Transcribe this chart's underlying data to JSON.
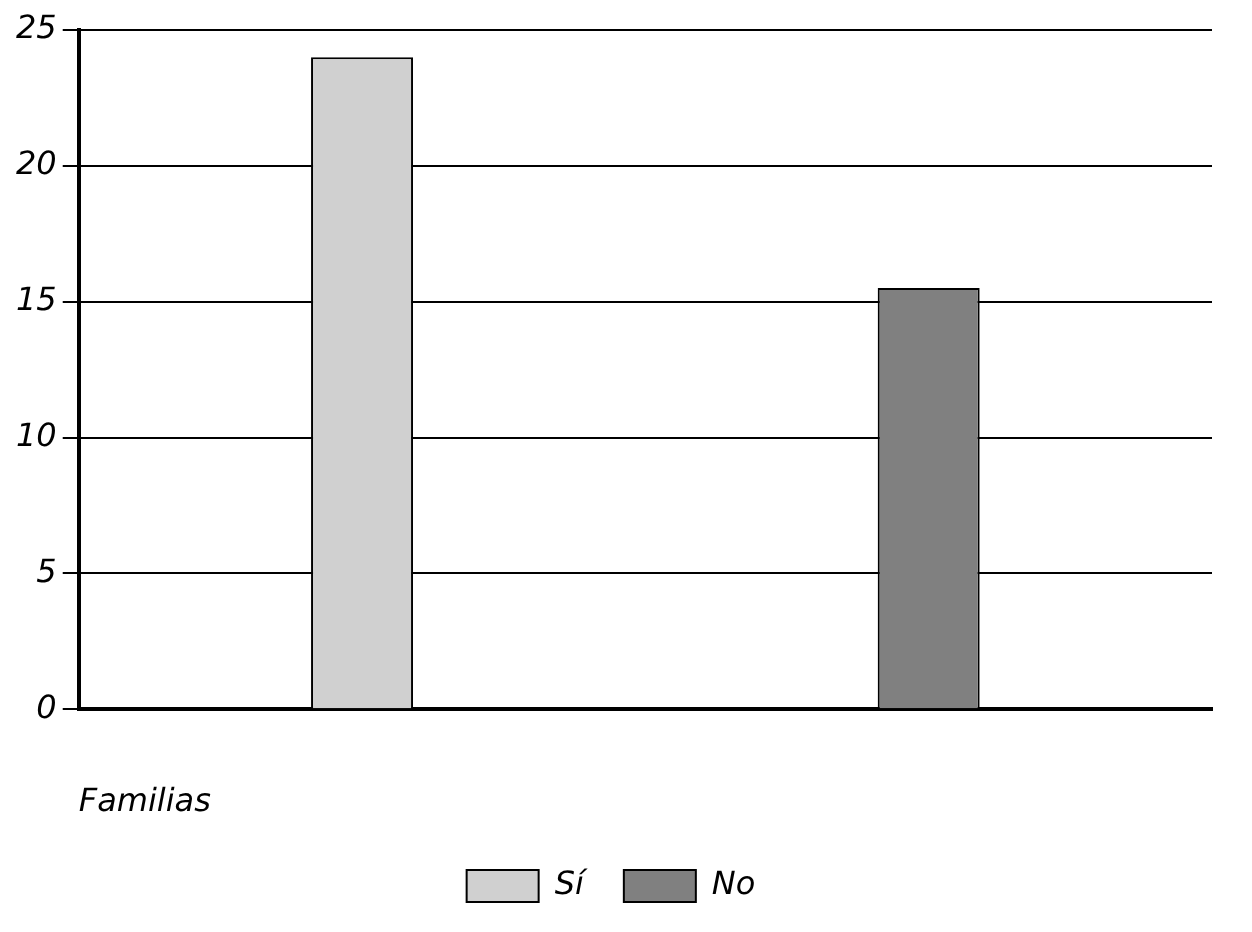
{
  "chart_data": {
    "type": "bar",
    "xlabel": "Familias",
    "categories": [
      null
    ],
    "series": [
      {
        "name": "Sí",
        "color": "#d0d0d0",
        "values": [
          24
        ]
      },
      {
        "name": "No",
        "color": "#808080",
        "values": [
          15.5
        ]
      }
    ],
    "ylim": [
      0,
      25
    ],
    "yticks": [
      0,
      5,
      10,
      15,
      20,
      25
    ],
    "grid": "y",
    "legend": "bottom"
  }
}
